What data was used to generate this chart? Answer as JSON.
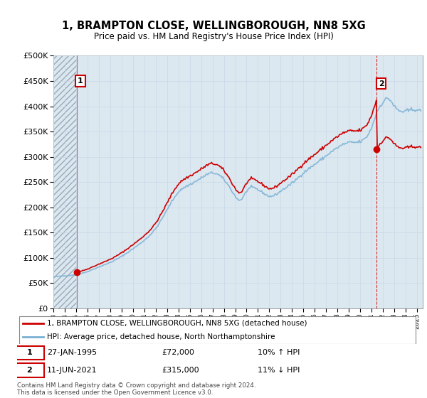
{
  "title": "1, BRAMPTON CLOSE, WELLINGBOROUGH, NN8 5XG",
  "subtitle": "Price paid vs. HM Land Registry's House Price Index (HPI)",
  "legend_line1": "1, BRAMPTON CLOSE, WELLINGBOROUGH, NN8 5XG (detached house)",
  "legend_line2": "HPI: Average price, detached house, North Northamptonshire",
  "sale1_date": "27-JAN-1995",
  "sale1_price": "£72,000",
  "sale1_hpi": "10% ↑ HPI",
  "sale2_date": "11-JUN-2021",
  "sale2_price": "£315,000",
  "sale2_hpi": "11% ↓ HPI",
  "footer": "Contains HM Land Registry data © Crown copyright and database right 2024.\nThis data is licensed under the Open Government Licence v3.0.",
  "price_line_color": "#cc0000",
  "hpi_line_color": "#7ab0d4",
  "sale_marker_color": "#cc0000",
  "vline1_color": "#cc0000",
  "vline2_color": "#cc0000",
  "grid_color": "#c8d8e8",
  "bg_color": "#dce8f0",
  "plot_bg": "#ffffff",
  "ylim": [
    0,
    500000
  ],
  "yticks": [
    0,
    50000,
    100000,
    150000,
    200000,
    250000,
    300000,
    350000,
    400000,
    450000,
    500000
  ],
  "sale1_x": 1995.08,
  "sale1_y": 72000,
  "sale2_x": 2021.44,
  "sale2_y": 315000,
  "xmin": 1993.0,
  "xmax": 2025.5
}
